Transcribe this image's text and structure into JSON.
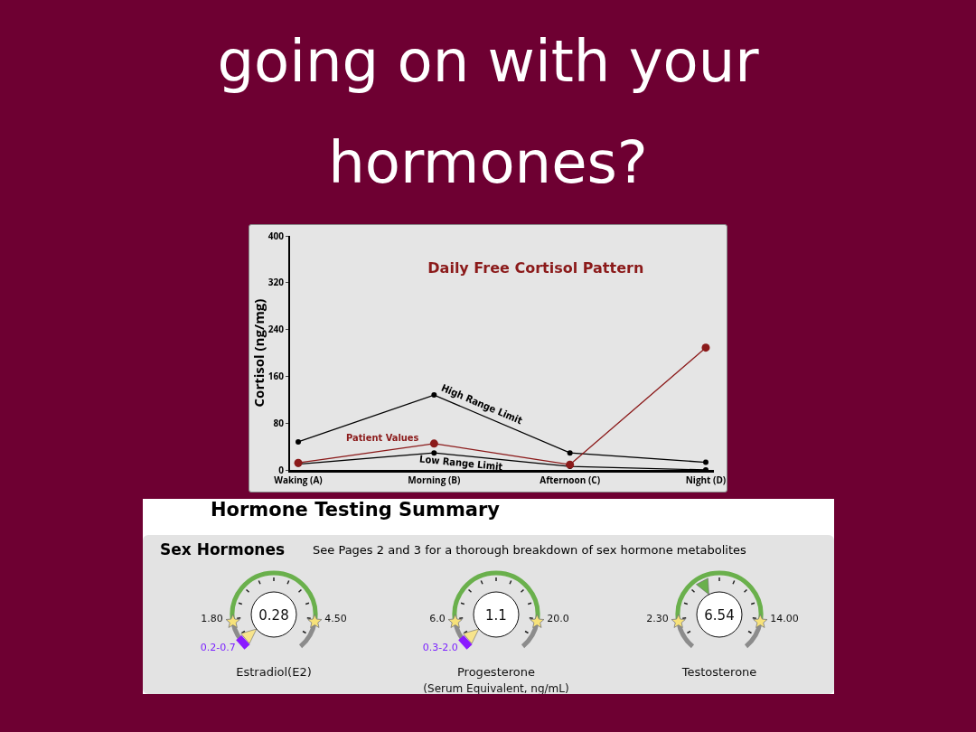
{
  "chart_data": [
    {
      "type": "other",
      "title": "going on with your hormones?"
    },
    {
      "type": "line",
      "title": "Daily Free Cortisol Pattern",
      "ylabel": "Cortisol (ng/mg)",
      "categories": [
        "Waking (A)",
        "Morning (B)",
        "Afternoon (C)",
        "Night (D)"
      ],
      "series": [
        {
          "name": "High Range Limit",
          "color": "#000000",
          "values": [
            48,
            128,
            29,
            13
          ]
        },
        {
          "name": "Patient Values",
          "color": "#8b1a1a",
          "values": [
            12,
            45,
            9,
            209
          ]
        },
        {
          "name": "Low Range Limit",
          "color": "#000000",
          "values": [
            10,
            29,
            6,
            0
          ]
        }
      ],
      "ylim": [
        0,
        400
      ],
      "yticks": [
        0,
        80,
        160,
        240,
        320,
        400
      ],
      "grid": false,
      "legend": false,
      "marker": "circle",
      "line_style": "solid"
    },
    {
      "type": "other",
      "title": "Hormone Testing Summary",
      "subtitle": "Sex Hormones",
      "annotations": [
        "See Pages 2 and 3 for a thorough breakdown of sex hormone metabolites"
      ]
    },
    {
      "type": "other",
      "title": "Estradiol(E2)",
      "annotations": [
        "0.28",
        "1.80",
        "4.50",
        "0.2-0.7"
      ]
    },
    {
      "type": "other",
      "title": "Progesterone",
      "subtitle": "(Serum Equivalent, ng/mL)",
      "annotations": [
        "1.1",
        "6.0",
        "20.0",
        "0.3-2.0"
      ]
    },
    {
      "type": "other",
      "title": "Testosterone",
      "annotations": [
        "6.54",
        "2.30",
        "14.00"
      ]
    }
  ]
}
